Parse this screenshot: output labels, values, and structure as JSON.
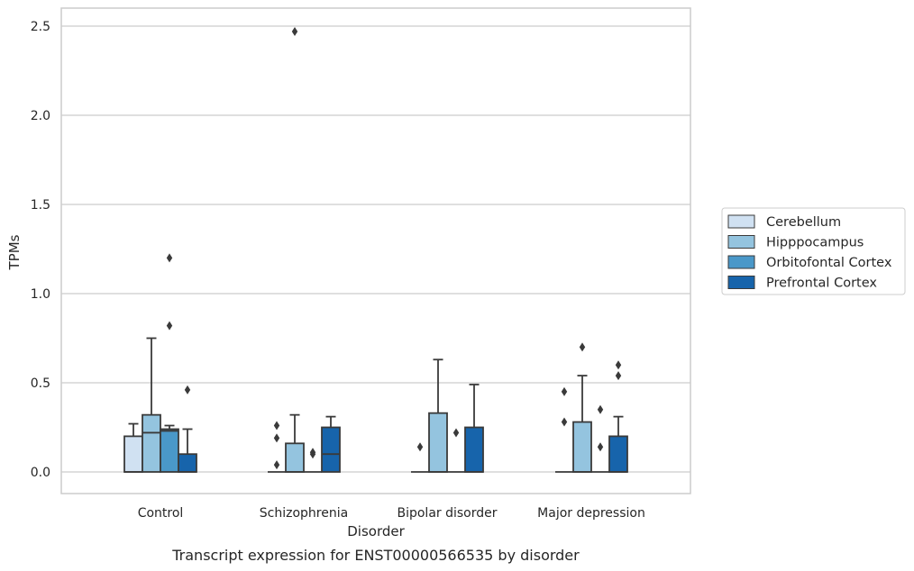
{
  "chart_data": {
    "type": "box",
    "caption": "Transcript expression for ENST00000566535 by disorder",
    "xlabel": "Disorder",
    "ylabel": "TPMs",
    "ylim": [
      -0.12,
      2.6
    ],
    "yticks": [
      "0.0",
      "0.5",
      "1.0",
      "1.5",
      "2.0",
      "2.5"
    ],
    "grid": true,
    "legend_position": "right",
    "categories": [
      "Control",
      "Schizophrenia",
      "Bipolar disorder",
      "Major depression"
    ],
    "series": [
      {
        "name": "Cerebellum",
        "color": "#d0e1f2",
        "boxes": [
          {
            "q1": 0,
            "median": 0,
            "q3": 0.2,
            "whisker_low": 0,
            "whisker_high": 0.27,
            "outliers": []
          },
          {
            "q1": 0,
            "median": 0,
            "q3": 0,
            "whisker_low": 0,
            "whisker_high": 0,
            "outliers": [
              0.04,
              0.19,
              0.26
            ]
          },
          {
            "q1": 0,
            "median": 0,
            "q3": 0,
            "whisker_low": 0,
            "whisker_high": 0,
            "outliers": [
              0.14
            ]
          },
          {
            "q1": 0,
            "median": 0,
            "q3": 0,
            "whisker_low": 0,
            "whisker_high": 0,
            "outliers": [
              0.28,
              0.45
            ]
          }
        ]
      },
      {
        "name": "Hipppocampus",
        "color": "#94c4df",
        "boxes": [
          {
            "q1": 0,
            "median": 0.22,
            "q3": 0.32,
            "whisker_low": 0,
            "whisker_high": 0.75,
            "outliers": []
          },
          {
            "q1": 0,
            "median": 0,
            "q3": 0.16,
            "whisker_low": 0,
            "whisker_high": 0.32,
            "outliers": [
              2.47
            ]
          },
          {
            "q1": 0,
            "median": 0,
            "q3": 0.33,
            "whisker_low": 0,
            "whisker_high": 0.63,
            "outliers": []
          },
          {
            "q1": 0,
            "median": 0,
            "q3": 0.28,
            "whisker_low": 0,
            "whisker_high": 0.54,
            "outliers": [
              0.7
            ]
          }
        ]
      },
      {
        "name": "Orbitofontal Cortex",
        "color": "#4a98c9",
        "boxes": [
          {
            "q1": 0,
            "median": 0.23,
            "q3": 0.24,
            "whisker_low": 0,
            "whisker_high": 0.26,
            "outliers": [
              0.82,
              1.2
            ]
          },
          {
            "q1": 0,
            "median": 0,
            "q3": 0,
            "whisker_low": 0,
            "whisker_high": 0,
            "outliers": [
              0.1,
              0.11
            ]
          },
          {
            "q1": 0,
            "median": 0,
            "q3": 0,
            "whisker_low": 0,
            "whisker_high": 0,
            "outliers": [
              0.22
            ]
          },
          {
            "q1": 0,
            "median": 0,
            "q3": 0,
            "whisker_low": 0,
            "whisker_high": 0,
            "outliers": [
              0.14,
              0.35
            ]
          }
        ]
      },
      {
        "name": "Prefrontal Cortex",
        "color": "#1764ab",
        "boxes": [
          {
            "q1": 0,
            "median": 0,
            "q3": 0.1,
            "whisker_low": 0,
            "whisker_high": 0.24,
            "outliers": [
              0.46
            ]
          },
          {
            "q1": 0,
            "median": 0.1,
            "q3": 0.25,
            "whisker_low": 0,
            "whisker_high": 0.31,
            "outliers": []
          },
          {
            "q1": 0,
            "median": 0,
            "q3": 0.25,
            "whisker_low": 0,
            "whisker_high": 0.49,
            "outliers": []
          },
          {
            "q1": 0,
            "median": 0,
            "q3": 0.2,
            "whisker_low": 0,
            "whisker_high": 0.31,
            "outliers": [
              0.54,
              0.6
            ]
          }
        ]
      }
    ]
  }
}
